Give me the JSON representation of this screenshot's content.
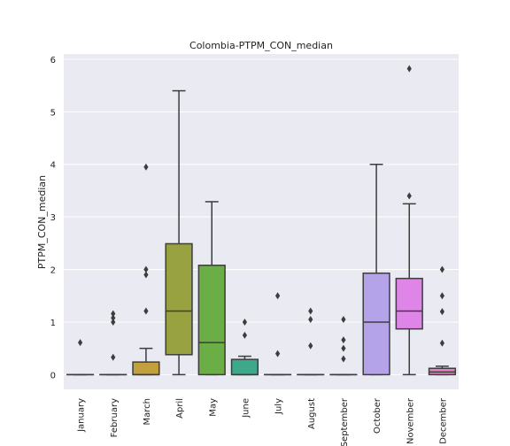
{
  "chart_data": {
    "type": "box",
    "title": "Colombia-PTPM_CON_median",
    "xlabel": "",
    "ylabel": "PTPM_CON_median",
    "ylim": [
      -0.28,
      6.1
    ],
    "yticks": [
      0,
      1,
      2,
      3,
      4,
      5,
      6
    ],
    "grid": true,
    "legend": "none",
    "background": "#eaeaf2",
    "categories": [
      "January",
      "February",
      "March",
      "April",
      "May",
      "June",
      "July",
      "August",
      "September",
      "October",
      "November",
      "December"
    ],
    "boxes": [
      {
        "category": "January",
        "q1": 0,
        "median": 0,
        "q3": 0,
        "whisker_low": 0,
        "whisker_high": 0,
        "outliers": [
          0.61
        ],
        "color": "#3274a1"
      },
      {
        "category": "February",
        "q1": 0,
        "median": 0,
        "q3": 0,
        "whisker_low": 0,
        "whisker_high": 0,
        "outliers": [
          0.33,
          1.0,
          1.08,
          1.16
        ],
        "color": "#e1812c"
      },
      {
        "category": "March",
        "q1": 0,
        "median": 0,
        "q3": 0.24,
        "whisker_low": 0,
        "whisker_high": 0.5,
        "outliers": [
          1.21,
          1.9,
          2.0,
          3.95
        ],
        "color": "#c29f3f"
      },
      {
        "category": "April",
        "q1": 0.38,
        "median": 1.21,
        "q3": 2.49,
        "whisker_low": 0,
        "whisker_high": 5.4,
        "outliers": [],
        "color": "#99a240"
      },
      {
        "category": "May",
        "q1": 0,
        "median": 0.61,
        "q3": 2.08,
        "whisker_low": 0,
        "whisker_high": 3.29,
        "outliers": [],
        "color": "#6bae45"
      },
      {
        "category": "June",
        "q1": 0,
        "median": 0,
        "q3": 0.29,
        "whisker_low": 0,
        "whisker_high": 0.35,
        "outliers": [
          0.75,
          1.0
        ],
        "color": "#3ea88a"
      },
      {
        "category": "July",
        "q1": 0,
        "median": 0,
        "q3": 0,
        "whisker_low": 0,
        "whisker_high": 0,
        "outliers": [
          0.4,
          1.5
        ],
        "color": "#3ba6a0"
      },
      {
        "category": "August",
        "q1": 0,
        "median": 0,
        "q3": 0,
        "whisker_low": 0,
        "whisker_high": 0,
        "outliers": [
          0.55,
          1.05,
          1.21
        ],
        "color": "#3aa3b7"
      },
      {
        "category": "September",
        "q1": 0,
        "median": 0,
        "q3": 0,
        "whisker_low": 0,
        "whisker_high": 0,
        "outliers": [
          0.3,
          0.5,
          0.66,
          1.05
        ],
        "color": "#459ec8"
      },
      {
        "category": "October",
        "q1": 0,
        "median": 1.0,
        "q3": 1.93,
        "whisker_low": 0,
        "whisker_high": 4.0,
        "outliers": [],
        "color": "#b5a3ea"
      },
      {
        "category": "November",
        "q1": 0.87,
        "median": 1.21,
        "q3": 1.83,
        "whisker_low": 0,
        "whisker_high": 3.25,
        "outliers": [
          3.4,
          5.82
        ],
        "color": "#e085e8"
      },
      {
        "category": "December",
        "q1": 0,
        "median": 0.05,
        "q3": 0.12,
        "whisker_low": 0,
        "whisker_high": 0.16,
        "outliers": [
          0.6,
          1.2,
          1.5,
          2.0
        ],
        "color": "#e77fc4"
      }
    ]
  }
}
